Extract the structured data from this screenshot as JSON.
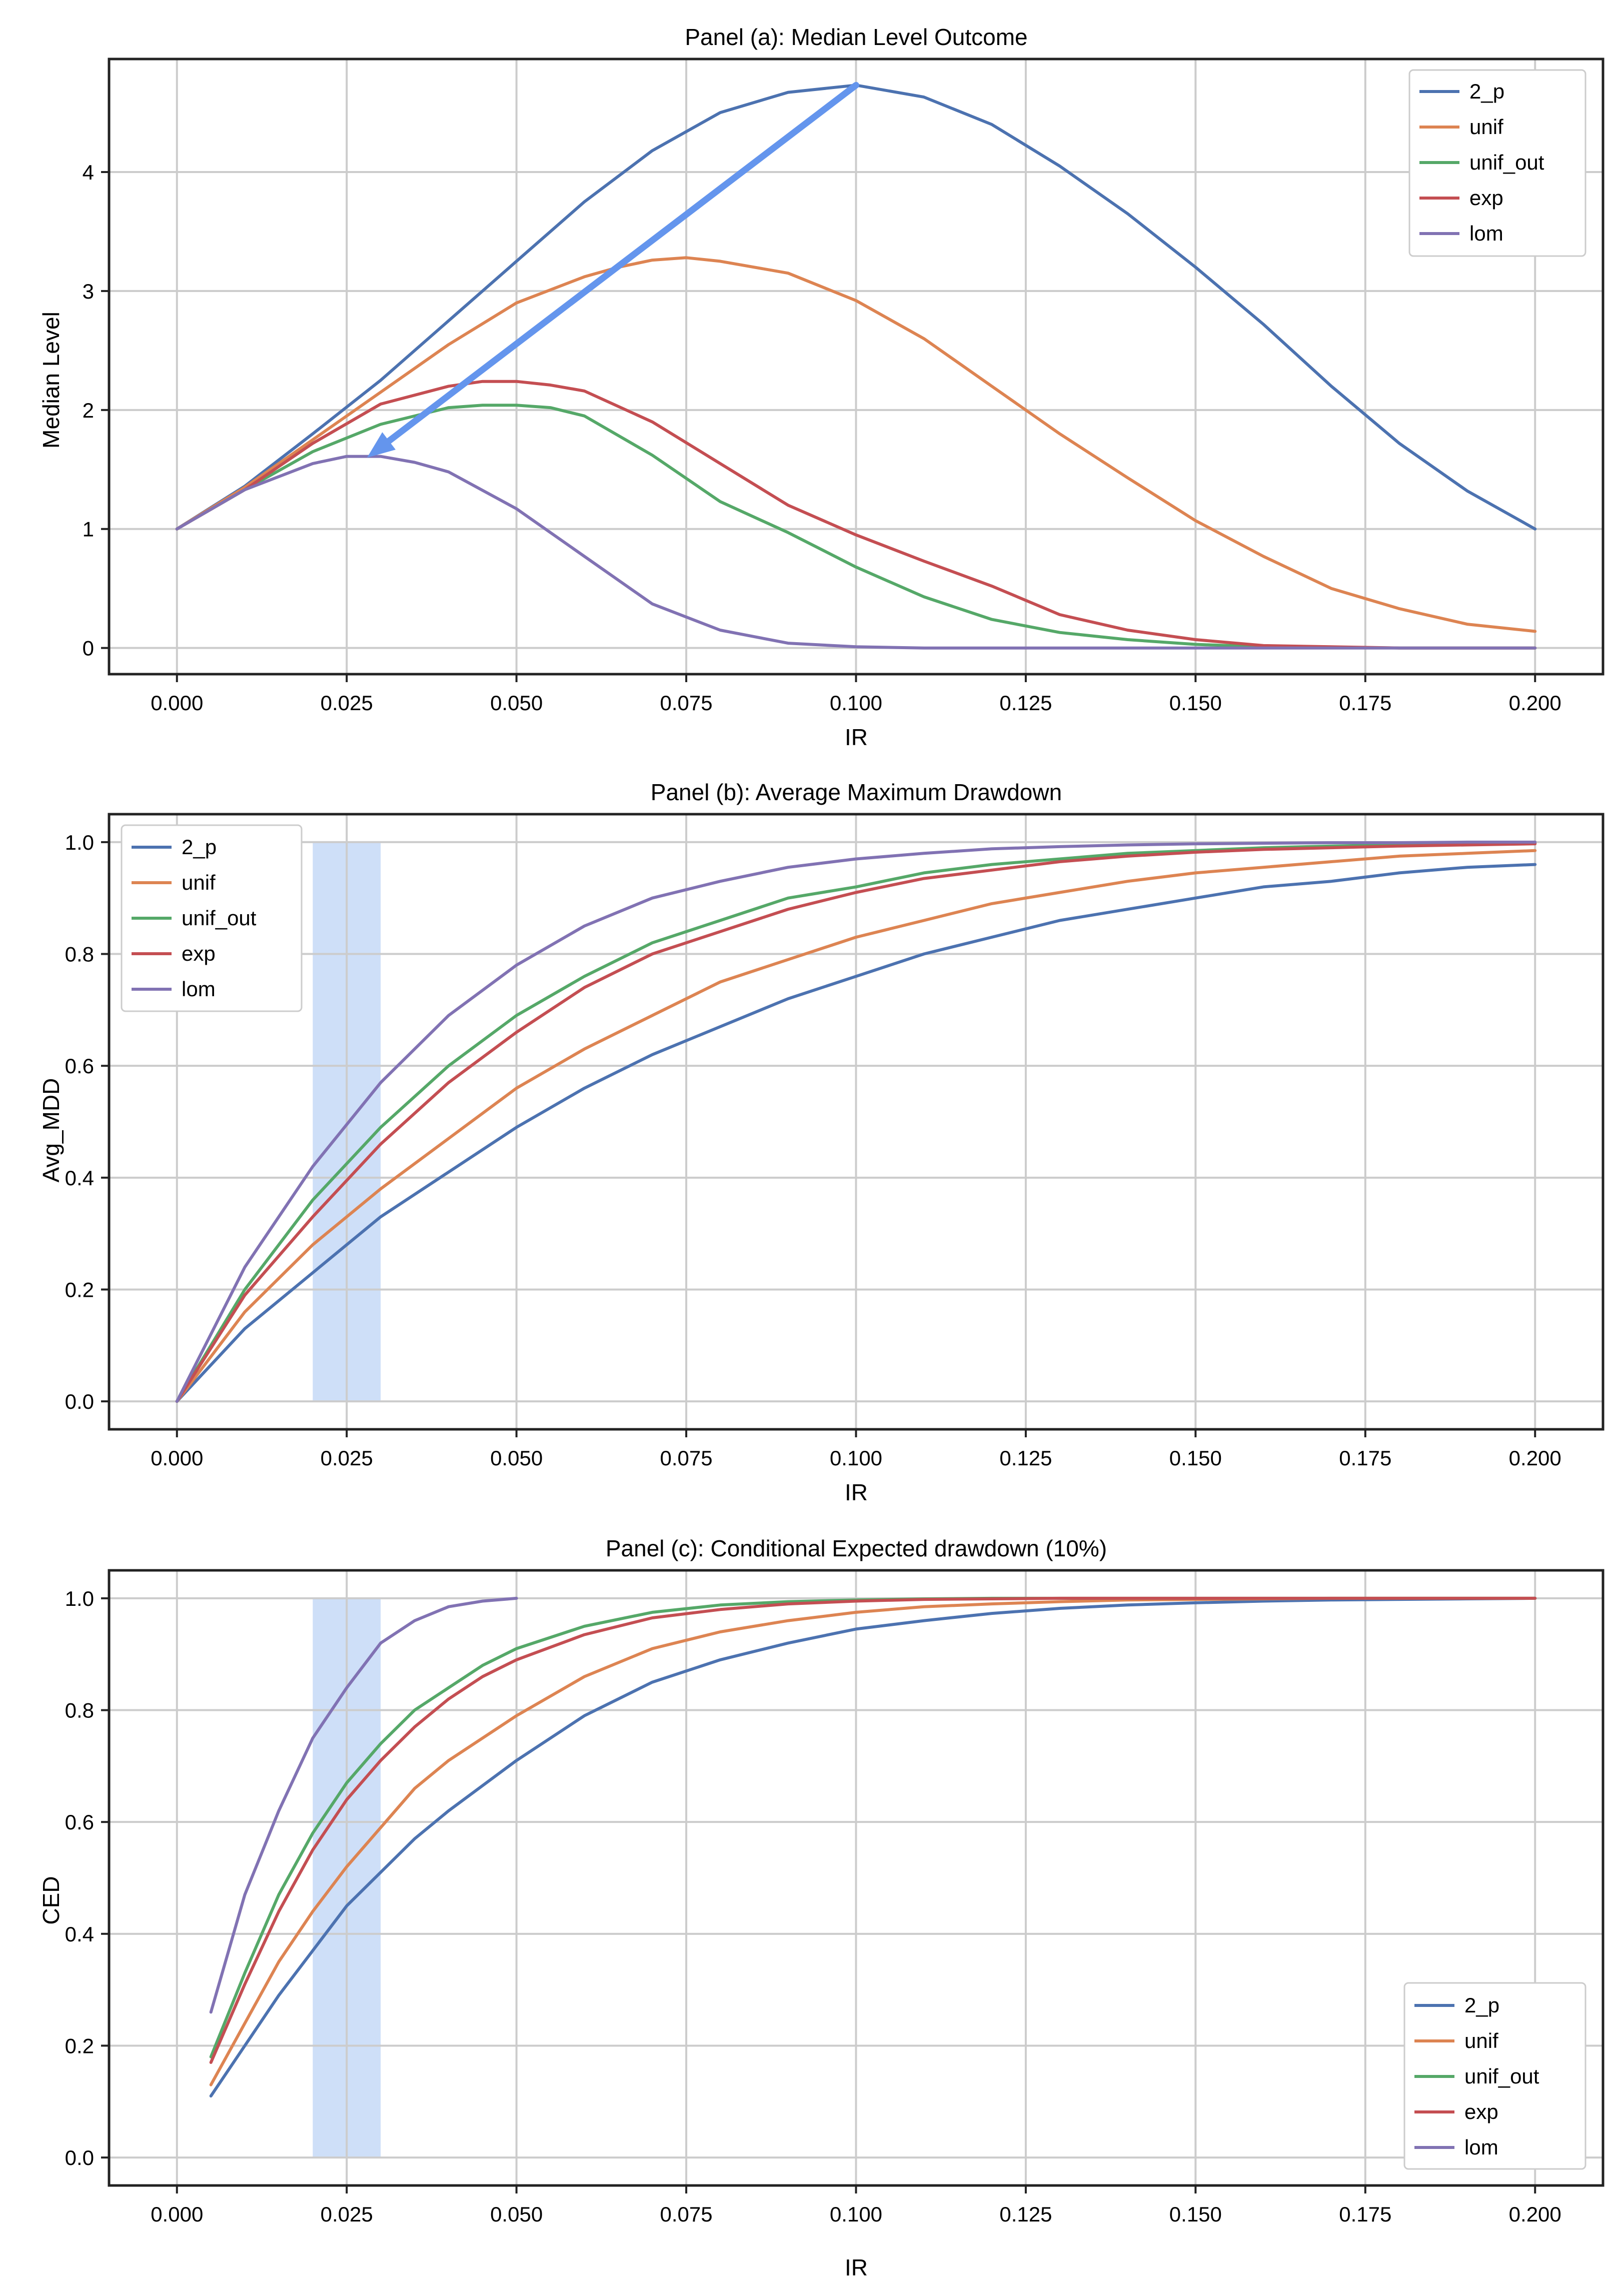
{
  "colors": {
    "2_p": "#4c72b0",
    "unif": "#dd8452",
    "unif_out": "#55a868",
    "exp": "#c44e52",
    "lom": "#8172b3",
    "arrow": "#6495ed",
    "band": "#c6d9f7",
    "grid": "#cccccc"
  },
  "chart_data": [
    {
      "type": "line",
      "title": "Panel (a): Median Level Outcome",
      "xlabel": "IR",
      "ylabel": "Median Level",
      "xlim": [
        -0.01,
        0.21
      ],
      "ylim": [
        -0.22,
        4.95
      ],
      "xticks": [
        0.0,
        0.025,
        0.05,
        0.075,
        0.1,
        0.125,
        0.15,
        0.175,
        0.2
      ],
      "xtick_labels": [
        "0.000",
        "0.025",
        "0.050",
        "0.075",
        "0.100",
        "0.125",
        "0.150",
        "0.175",
        "0.200"
      ],
      "yticks": [
        0,
        1,
        2,
        3,
        4
      ],
      "ytick_labels": [
        "0",
        "1",
        "2",
        "3",
        "4"
      ],
      "legend_position": "top-right",
      "legend": [
        "2_p",
        "unif",
        "unif_out",
        "exp",
        "lom"
      ],
      "annotation": {
        "type": "arrow",
        "from": [
          0.1,
          4.73
        ],
        "to": [
          0.028,
          1.6
        ]
      },
      "series": [
        {
          "name": "2_p",
          "x": [
            0,
            0.01,
            0.02,
            0.03,
            0.04,
            0.05,
            0.06,
            0.07,
            0.08,
            0.09,
            0.1,
            0.11,
            0.12,
            0.13,
            0.14,
            0.15,
            0.16,
            0.17,
            0.18,
            0.19,
            0.2
          ],
          "y": [
            1.0,
            1.36,
            1.8,
            2.25,
            2.75,
            3.25,
            3.75,
            4.18,
            4.5,
            4.67,
            4.73,
            4.63,
            4.4,
            4.05,
            3.65,
            3.2,
            2.72,
            2.2,
            1.72,
            1.32,
            1.0
          ]
        },
        {
          "name": "unif",
          "x": [
            0,
            0.01,
            0.02,
            0.03,
            0.04,
            0.05,
            0.06,
            0.065,
            0.07,
            0.075,
            0.08,
            0.09,
            0.1,
            0.11,
            0.12,
            0.13,
            0.14,
            0.15,
            0.16,
            0.17,
            0.18,
            0.19,
            0.2
          ],
          "y": [
            1.0,
            1.35,
            1.75,
            2.15,
            2.55,
            2.9,
            3.12,
            3.2,
            3.26,
            3.28,
            3.25,
            3.15,
            2.92,
            2.6,
            2.2,
            1.8,
            1.43,
            1.07,
            0.77,
            0.5,
            0.33,
            0.2,
            0.14
          ]
        },
        {
          "name": "unif_out",
          "x": [
            0,
            0.01,
            0.02,
            0.03,
            0.04,
            0.045,
            0.05,
            0.055,
            0.06,
            0.07,
            0.08,
            0.09,
            0.1,
            0.11,
            0.12,
            0.13,
            0.14,
            0.15,
            0.16,
            0.18,
            0.2
          ],
          "y": [
            1.0,
            1.33,
            1.65,
            1.88,
            2.02,
            2.04,
            2.04,
            2.02,
            1.95,
            1.62,
            1.23,
            0.97,
            0.68,
            0.43,
            0.24,
            0.13,
            0.07,
            0.03,
            0.01,
            0.0,
            0.0
          ]
        },
        {
          "name": "exp",
          "x": [
            0,
            0.01,
            0.02,
            0.03,
            0.04,
            0.045,
            0.05,
            0.055,
            0.06,
            0.07,
            0.08,
            0.09,
            0.1,
            0.11,
            0.12,
            0.13,
            0.14,
            0.15,
            0.16,
            0.18,
            0.2
          ],
          "y": [
            1.0,
            1.33,
            1.72,
            2.05,
            2.2,
            2.24,
            2.24,
            2.21,
            2.16,
            1.9,
            1.55,
            1.2,
            0.95,
            0.73,
            0.52,
            0.28,
            0.15,
            0.07,
            0.02,
            0.0,
            0.0
          ]
        },
        {
          "name": "lom",
          "x": [
            0,
            0.01,
            0.02,
            0.025,
            0.03,
            0.035,
            0.04,
            0.05,
            0.06,
            0.07,
            0.08,
            0.09,
            0.1,
            0.11,
            0.12,
            0.15,
            0.2
          ],
          "y": [
            1.0,
            1.33,
            1.55,
            1.61,
            1.61,
            1.56,
            1.48,
            1.17,
            0.77,
            0.37,
            0.15,
            0.04,
            0.01,
            0.0,
            0.0,
            0.0,
            0.0
          ]
        }
      ]
    },
    {
      "type": "line",
      "title": "Panel (b): Average Maximum Drawdown",
      "xlabel": "IR",
      "ylabel": "Avg_MDD",
      "xlim": [
        -0.01,
        0.21
      ],
      "ylim": [
        -0.05,
        1.05
      ],
      "xticks": [
        0.0,
        0.025,
        0.05,
        0.075,
        0.1,
        0.125,
        0.15,
        0.175,
        0.2
      ],
      "xtick_labels": [
        "0.000",
        "0.025",
        "0.050",
        "0.075",
        "0.100",
        "0.125",
        "0.150",
        "0.175",
        "0.200"
      ],
      "yticks": [
        0.0,
        0.2,
        0.4,
        0.6,
        0.8,
        1.0
      ],
      "ytick_labels": [
        "0.0",
        "0.2",
        "0.4",
        "0.6",
        "0.8",
        "1.0"
      ],
      "legend_position": "top-left",
      "legend": [
        "2_p",
        "unif",
        "unif_out",
        "exp",
        "lom"
      ],
      "shaded_band": [
        0.02,
        0.03
      ],
      "series": [
        {
          "name": "2_p",
          "x": [
            0,
            0.01,
            0.02,
            0.03,
            0.04,
            0.05,
            0.06,
            0.07,
            0.08,
            0.09,
            0.1,
            0.11,
            0.12,
            0.13,
            0.14,
            0.15,
            0.16,
            0.17,
            0.18,
            0.19,
            0.2
          ],
          "y": [
            0,
            0.13,
            0.23,
            0.33,
            0.41,
            0.49,
            0.56,
            0.62,
            0.67,
            0.72,
            0.76,
            0.8,
            0.83,
            0.86,
            0.88,
            0.9,
            0.92,
            0.93,
            0.945,
            0.955,
            0.96
          ]
        },
        {
          "name": "unif",
          "x": [
            0,
            0.01,
            0.02,
            0.03,
            0.04,
            0.05,
            0.06,
            0.07,
            0.08,
            0.09,
            0.1,
            0.11,
            0.12,
            0.13,
            0.14,
            0.15,
            0.16,
            0.17,
            0.18,
            0.19,
            0.2
          ],
          "y": [
            0,
            0.16,
            0.28,
            0.38,
            0.47,
            0.56,
            0.63,
            0.69,
            0.75,
            0.79,
            0.83,
            0.86,
            0.89,
            0.91,
            0.93,
            0.945,
            0.955,
            0.965,
            0.975,
            0.98,
            0.985
          ]
        },
        {
          "name": "unif_out",
          "x": [
            0,
            0.01,
            0.02,
            0.03,
            0.04,
            0.05,
            0.06,
            0.07,
            0.08,
            0.09,
            0.1,
            0.11,
            0.12,
            0.13,
            0.14,
            0.15,
            0.16,
            0.17,
            0.18,
            0.19,
            0.2
          ],
          "y": [
            0,
            0.2,
            0.36,
            0.49,
            0.6,
            0.69,
            0.76,
            0.82,
            0.86,
            0.9,
            0.92,
            0.945,
            0.96,
            0.97,
            0.98,
            0.985,
            0.99,
            0.993,
            0.995,
            0.997,
            0.998
          ]
        },
        {
          "name": "exp",
          "x": [
            0,
            0.01,
            0.02,
            0.03,
            0.04,
            0.05,
            0.06,
            0.07,
            0.08,
            0.09,
            0.1,
            0.11,
            0.12,
            0.13,
            0.14,
            0.15,
            0.16,
            0.17,
            0.18,
            0.19,
            0.2
          ],
          "y": [
            0,
            0.19,
            0.33,
            0.46,
            0.57,
            0.66,
            0.74,
            0.8,
            0.84,
            0.88,
            0.91,
            0.935,
            0.95,
            0.965,
            0.975,
            0.982,
            0.987,
            0.99,
            0.993,
            0.995,
            0.997
          ]
        },
        {
          "name": "lom",
          "x": [
            0,
            0.01,
            0.02,
            0.03,
            0.04,
            0.05,
            0.06,
            0.07,
            0.08,
            0.09,
            0.1,
            0.11,
            0.12,
            0.13,
            0.14,
            0.15,
            0.16,
            0.17,
            0.18,
            0.19,
            0.2
          ],
          "y": [
            0,
            0.24,
            0.42,
            0.57,
            0.69,
            0.78,
            0.85,
            0.9,
            0.93,
            0.955,
            0.97,
            0.98,
            0.988,
            0.992,
            0.995,
            0.997,
            0.998,
            0.999,
            0.999,
            1.0,
            1.0
          ]
        }
      ]
    },
    {
      "type": "line",
      "title": "Panel (c): Conditional Expected drawdown (10%)",
      "xlabel": "IR",
      "ylabel": "CED",
      "xlim": [
        -0.01,
        0.21
      ],
      "ylim": [
        -0.05,
        1.05
      ],
      "xticks": [
        0.0,
        0.025,
        0.05,
        0.075,
        0.1,
        0.125,
        0.15,
        0.175,
        0.2
      ],
      "xtick_labels": [
        "0.000",
        "0.025",
        "0.050",
        "0.075",
        "0.100",
        "0.125",
        "0.150",
        "0.175",
        "0.200"
      ],
      "yticks": [
        0.0,
        0.2,
        0.4,
        0.6,
        0.8,
        1.0
      ],
      "ytick_labels": [
        "0.0",
        "0.2",
        "0.4",
        "0.6",
        "0.8",
        "1.0"
      ],
      "legend_position": "bottom-right",
      "legend": [
        "2_p",
        "unif",
        "unif_out",
        "exp",
        "lom"
      ],
      "shaded_band": [
        0.02,
        0.03
      ],
      "series": [
        {
          "name": "2_p",
          "x": [
            0.005,
            0.01,
            0.015,
            0.02,
            0.025,
            0.03,
            0.035,
            0.04,
            0.05,
            0.06,
            0.07,
            0.08,
            0.09,
            0.1,
            0.11,
            0.12,
            0.13,
            0.14,
            0.15,
            0.16,
            0.17,
            0.18,
            0.19,
            0.2
          ],
          "y": [
            0.11,
            0.2,
            0.29,
            0.37,
            0.45,
            0.51,
            0.57,
            0.62,
            0.71,
            0.79,
            0.85,
            0.89,
            0.92,
            0.945,
            0.96,
            0.973,
            0.982,
            0.988,
            0.992,
            0.995,
            0.997,
            0.998,
            0.999,
            1.0
          ]
        },
        {
          "name": "unif",
          "x": [
            0.005,
            0.01,
            0.015,
            0.02,
            0.025,
            0.03,
            0.035,
            0.04,
            0.05,
            0.06,
            0.07,
            0.08,
            0.09,
            0.1,
            0.11,
            0.12,
            0.13,
            0.14,
            0.15,
            0.16,
            0.17,
            0.18,
            0.19,
            0.2
          ],
          "y": [
            0.13,
            0.24,
            0.35,
            0.44,
            0.52,
            0.59,
            0.66,
            0.71,
            0.79,
            0.86,
            0.91,
            0.94,
            0.96,
            0.975,
            0.985,
            0.99,
            0.994,
            0.997,
            0.998,
            0.999,
            1.0,
            1.0,
            1.0,
            1.0
          ]
        },
        {
          "name": "unif_out",
          "x": [
            0.005,
            0.01,
            0.015,
            0.02,
            0.025,
            0.03,
            0.035,
            0.04,
            0.045,
            0.05,
            0.06,
            0.07,
            0.08,
            0.09,
            0.1,
            0.11,
            0.12,
            0.13,
            0.14,
            0.15,
            0.16,
            0.18,
            0.2
          ],
          "y": [
            0.18,
            0.33,
            0.47,
            0.58,
            0.67,
            0.74,
            0.8,
            0.84,
            0.88,
            0.91,
            0.95,
            0.975,
            0.988,
            0.994,
            0.997,
            0.999,
            1.0,
            1.0,
            1.0,
            1.0,
            1.0,
            1.0,
            1.0
          ]
        },
        {
          "name": "exp",
          "x": [
            0.005,
            0.01,
            0.015,
            0.02,
            0.025,
            0.03,
            0.035,
            0.04,
            0.045,
            0.05,
            0.06,
            0.07,
            0.08,
            0.09,
            0.1,
            0.11,
            0.12,
            0.13,
            0.14,
            0.15,
            0.16,
            0.18,
            0.2
          ],
          "y": [
            0.17,
            0.31,
            0.44,
            0.55,
            0.64,
            0.71,
            0.77,
            0.82,
            0.86,
            0.89,
            0.935,
            0.965,
            0.98,
            0.99,
            0.995,
            0.998,
            0.999,
            1.0,
            1.0,
            1.0,
            1.0,
            1.0,
            1.0
          ]
        },
        {
          "name": "lom",
          "x": [
            0.005,
            0.01,
            0.015,
            0.02,
            0.025,
            0.03,
            0.035,
            0.04,
            0.045,
            0.05
          ],
          "y": [
            0.26,
            0.47,
            0.62,
            0.75,
            0.84,
            0.92,
            0.96,
            0.985,
            0.995,
            1.0
          ]
        }
      ]
    }
  ]
}
